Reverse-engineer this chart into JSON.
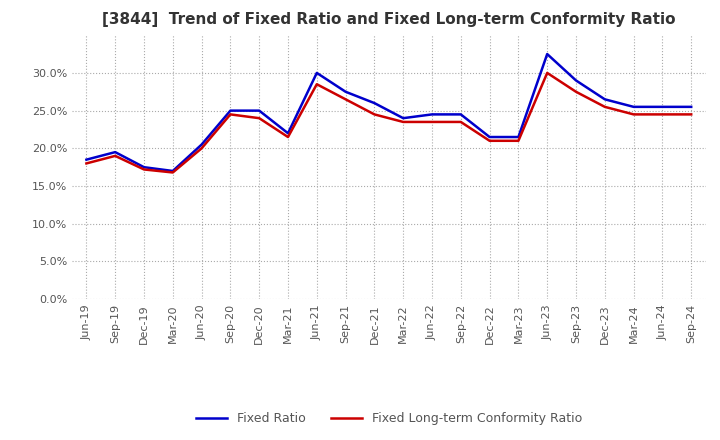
{
  "title": "[3844]  Trend of Fixed Ratio and Fixed Long-term Conformity Ratio",
  "x_labels": [
    "Jun-19",
    "Sep-19",
    "Dec-19",
    "Mar-20",
    "Jun-20",
    "Sep-20",
    "Dec-20",
    "Mar-21",
    "Jun-21",
    "Sep-21",
    "Dec-21",
    "Mar-22",
    "Jun-22",
    "Sep-22",
    "Dec-22",
    "Mar-23",
    "Jun-23",
    "Sep-23",
    "Dec-23",
    "Mar-24",
    "Jun-24",
    "Sep-24"
  ],
  "fixed_ratio": [
    18.5,
    19.5,
    17.5,
    17.0,
    20.5,
    25.0,
    25.0,
    22.0,
    30.0,
    27.5,
    26.0,
    24.0,
    24.5,
    24.5,
    21.5,
    21.5,
    32.5,
    29.0,
    26.5,
    25.5,
    25.5,
    25.5
  ],
  "fixed_lt_ratio": [
    18.0,
    19.0,
    17.2,
    16.8,
    20.0,
    24.5,
    24.0,
    21.5,
    28.5,
    26.5,
    24.5,
    23.5,
    23.5,
    23.5,
    21.0,
    21.0,
    30.0,
    27.5,
    25.5,
    24.5,
    24.5,
    24.5
  ],
  "fixed_ratio_color": "#0000cc",
  "fixed_lt_ratio_color": "#cc0000",
  "ylim": [
    0.0,
    35.0
  ],
  "yticks": [
    0.0,
    5.0,
    10.0,
    15.0,
    20.0,
    25.0,
    30.0
  ],
  "background_color": "#ffffff",
  "grid_color": "#aaaaaa",
  "title_fontsize": 11,
  "legend_fontsize": 9,
  "tick_fontsize": 8,
  "line_width": 1.8
}
